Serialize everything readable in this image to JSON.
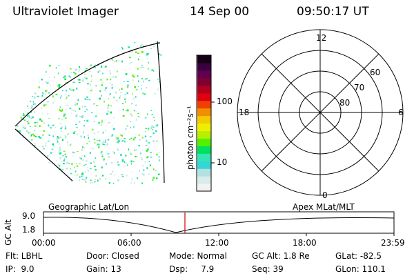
{
  "header": {
    "instrument": "Ultraviolet Imager",
    "date": "14 Sep 00",
    "time": "09:50:17 UT"
  },
  "colorbar": {
    "label": "photon cm⁻²s⁻¹",
    "ticks": [
      "100",
      "10"
    ],
    "colors": [
      "#f2f2f2",
      "#d9ecec",
      "#b4e0e0",
      "#33d6d6",
      "#33e6b3",
      "#00e060",
      "#55f000",
      "#b4f000",
      "#f0ee00",
      "#f0cc00",
      "#f09000",
      "#f04000",
      "#e00010",
      "#b00020",
      "#800030",
      "#60004f",
      "#3a0040",
      "#150015"
    ]
  },
  "left_panel": {
    "label": "Geographic Lat/Lon"
  },
  "polar_plot": {
    "label": "Apex MLat/MLT",
    "mlt_labels": [
      "12",
      "18",
      "6",
      "0"
    ],
    "mlat_labels": [
      "60",
      "70",
      "80"
    ]
  },
  "timeline": {
    "y_axis_label": "GC Alt",
    "y_ticks": [
      "9.0",
      "1.8"
    ],
    "x_ticks": [
      "00:00",
      "06:00",
      "12:00",
      "18:00",
      "23:59"
    ],
    "marker_color": "#cc0000"
  },
  "info": {
    "row1": {
      "flt": "Flt: LBHL",
      "door": "Door: Closed",
      "mode": "Mode: Normal",
      "gcalt": "GC Alt: 1.8 Re",
      "glat": "GLat: -82.5"
    },
    "row2": {
      "ip": "IP:  9.0",
      "gain": "Gain: 13",
      "dsp": "Dsp:     7.9",
      "seq": "Seq: 39",
      "glon": "GLon: 110.1"
    }
  }
}
